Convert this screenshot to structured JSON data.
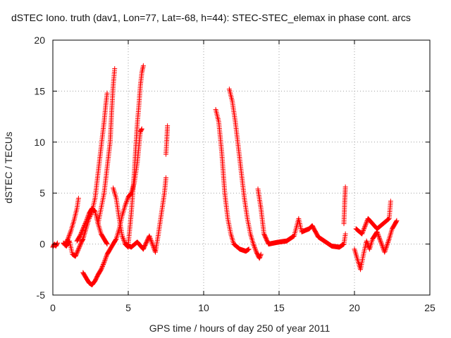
{
  "chart_data": {
    "type": "scatter",
    "title": "dSTEC Iono. truth (dav1, Lon=77, Lat=-68, h=44): STEC-STEC_elemax in phase cont. arcs",
    "xlabel": "GPS time / hours of day 250 of year 2011",
    "ylabel": "dSTEC  / TECUs",
    "xlim": [
      0,
      25
    ],
    "ylim": [
      -5,
      20
    ],
    "xticks": [
      0,
      5,
      10,
      15,
      20,
      25
    ],
    "yticks": [
      -5,
      0,
      5,
      10,
      15,
      20
    ],
    "grid": true,
    "legend": "none",
    "marker": "+",
    "color": "#ff0000",
    "series": [
      {
        "arcs": [
          {
            "points": [
              [
                0.0,
                -0.3
              ],
              [
                0.1,
                0.0
              ],
              [
                0.2,
                -0.2
              ],
              [
                0.3,
                0.1
              ]
            ]
          },
          {
            "points": [
              [
                0.7,
                0.1
              ],
              [
                0.9,
                -0.2
              ],
              [
                1.1,
                0.3
              ],
              [
                1.3,
                -1.0
              ],
              [
                1.5,
                -1.2
              ],
              [
                1.7,
                -0.5
              ],
              [
                1.9,
                0.2
              ],
              [
                2.0,
                0.5
              ],
              [
                2.2,
                1.5
              ],
              [
                2.4,
                2.5
              ],
              [
                2.6,
                3.2
              ],
              [
                2.8,
                4.5
              ],
              [
                3.0,
                7.0
              ],
              [
                3.2,
                9.5
              ],
              [
                3.4,
                12.0
              ],
              [
                3.5,
                13.5
              ],
              [
                3.6,
                14.8
              ]
            ]
          },
          {
            "points": [
              [
                0.8,
                -0.1
              ],
              [
                1.0,
                0.5
              ],
              [
                1.2,
                1.3
              ],
              [
                1.4,
                2.3
              ],
              [
                1.6,
                3.5
              ],
              [
                1.7,
                4.5
              ]
            ]
          },
          {
            "points": [
              [
                1.6,
                0.3
              ],
              [
                1.8,
                0.8
              ],
              [
                2.0,
                1.5
              ],
              [
                2.2,
                2.2
              ],
              [
                2.4,
                3.0
              ],
              [
                2.6,
                3.5
              ],
              [
                2.8,
                3.2
              ],
              [
                3.0,
                2.0
              ],
              [
                3.2,
                1.0
              ],
              [
                3.4,
                0.5
              ],
              [
                3.6,
                0.0
              ]
            ]
          },
          {
            "points": [
              [
                2.0,
                -2.8
              ],
              [
                2.2,
                -3.3
              ],
              [
                2.4,
                -3.8
              ],
              [
                2.6,
                -4.0
              ],
              [
                2.8,
                -3.6
              ],
              [
                3.0,
                -3.0
              ],
              [
                3.2,
                -2.5
              ],
              [
                3.4,
                -1.8
              ],
              [
                3.6,
                -1.0
              ],
              [
                3.8,
                -0.5
              ],
              [
                4.0,
                0.0
              ],
              [
                4.2,
                0.5
              ],
              [
                4.4,
                1.5
              ],
              [
                4.6,
                2.8
              ],
              [
                4.8,
                3.8
              ],
              [
                5.0,
                4.6
              ],
              [
                5.2,
                5.0
              ],
              [
                5.4,
                6.0
              ],
              [
                5.6,
                8.0
              ],
              [
                5.8,
                11.0
              ],
              [
                5.9,
                11.3
              ]
            ]
          },
          {
            "points": [
              [
                3.0,
                2.0
              ],
              [
                3.2,
                3.5
              ],
              [
                3.4,
                5.0
              ],
              [
                3.6,
                7.5
              ],
              [
                3.8,
                10.0
              ],
              [
                3.9,
                13.0
              ],
              [
                4.0,
                15.5
              ],
              [
                4.1,
                17.2
              ]
            ]
          },
          {
            "points": [
              [
                4.0,
                5.5
              ],
              [
                4.2,
                4.5
              ],
              [
                4.4,
                2.5
              ],
              [
                4.6,
                0.8
              ],
              [
                4.8,
                0.0
              ],
              [
                5.0,
                -0.3
              ]
            ]
          },
          {
            "points": [
              [
                5.0,
                0.0
              ],
              [
                5.2,
                3.0
              ],
              [
                5.4,
                7.0
              ],
              [
                5.5,
                9.5
              ],
              [
                5.6,
                11.8
              ],
              [
                5.7,
                13.5
              ],
              [
                5.8,
                15.5
              ],
              [
                5.9,
                16.8
              ],
              [
                6.0,
                17.5
              ]
            ]
          },
          {
            "points": [
              [
                4.8,
                0.0
              ],
              [
                5.2,
                -0.3
              ],
              [
                5.6,
                0.2
              ],
              [
                6.0,
                -0.5
              ],
              [
                6.4,
                0.8
              ],
              [
                6.8,
                -0.8
              ],
              [
                7.0,
                1.0
              ],
              [
                7.2,
                3.0
              ],
              [
                7.4,
                5.0
              ],
              [
                7.5,
                6.5
              ]
            ]
          },
          {
            "points": [
              [
                7.5,
                8.8
              ],
              [
                7.55,
                10.0
              ],
              [
                7.6,
                11.6
              ]
            ]
          },
          {
            "points": [
              [
                10.8,
                13.2
              ],
              [
                11.0,
                12.0
              ],
              [
                11.2,
                9.0
              ],
              [
                11.4,
                5.0
              ],
              [
                11.6,
                2.5
              ],
              [
                11.8,
                1.0
              ],
              [
                12.0,
                0.0
              ],
              [
                12.4,
                -0.5
              ],
              [
                12.8,
                -0.7
              ],
              [
                13.0,
                -0.5
              ]
            ]
          },
          {
            "points": [
              [
                11.7,
                15.2
              ],
              [
                11.9,
                14.0
              ],
              [
                12.1,
                12.0
              ],
              [
                12.3,
                9.5
              ],
              [
                12.5,
                7.0
              ],
              [
                12.7,
                4.5
              ],
              [
                12.9,
                2.5
              ],
              [
                13.1,
                1.0
              ],
              [
                13.3,
                0.0
              ],
              [
                13.5,
                -0.8
              ],
              [
                13.7,
                -1.4
              ],
              [
                13.8,
                -1.0
              ]
            ]
          },
          {
            "points": [
              [
                13.6,
                5.4
              ],
              [
                13.8,
                3.5
              ],
              [
                14.0,
                1.0
              ],
              [
                14.3,
                0.0
              ],
              [
                15.0,
                0.2
              ],
              [
                15.5,
                0.3
              ],
              [
                16.0,
                0.8
              ],
              [
                16.3,
                2.5
              ],
              [
                16.5,
                1.2
              ],
              [
                17.0,
                1.5
              ],
              [
                17.2,
                1.8
              ],
              [
                17.6,
                0.7
              ],
              [
                18.0,
                0.3
              ],
              [
                18.5,
                -0.2
              ],
              [
                19.0,
                -0.3
              ],
              [
                19.3,
                0.0
              ],
              [
                19.4,
                1.0
              ]
            ]
          },
          {
            "points": [
              [
                19.3,
                2.0
              ],
              [
                19.35,
                4.0
              ],
              [
                19.4,
                5.6
              ]
            ]
          },
          {
            "points": [
              [
                20.0,
                -0.5
              ],
              [
                20.2,
                -1.5
              ],
              [
                20.4,
                -2.5
              ],
              [
                20.6,
                -1.0
              ],
              [
                20.8,
                0.3
              ],
              [
                21.0,
                -0.5
              ],
              [
                21.2,
                0.5
              ],
              [
                21.5,
                1.2
              ],
              [
                21.8,
                0.0
              ],
              [
                22.0,
                -0.8
              ],
              [
                22.3,
                0.5
              ],
              [
                22.5,
                1.5
              ],
              [
                22.7,
                2.0
              ],
              [
                22.8,
                2.3
              ]
            ]
          },
          {
            "points": [
              [
                20.1,
                1.5
              ],
              [
                20.5,
                1.0
              ],
              [
                20.9,
                2.5
              ],
              [
                21.5,
                1.5
              ],
              [
                22.3,
                2.5
              ],
              [
                22.4,
                4.2
              ]
            ]
          }
        ]
      }
    ]
  }
}
